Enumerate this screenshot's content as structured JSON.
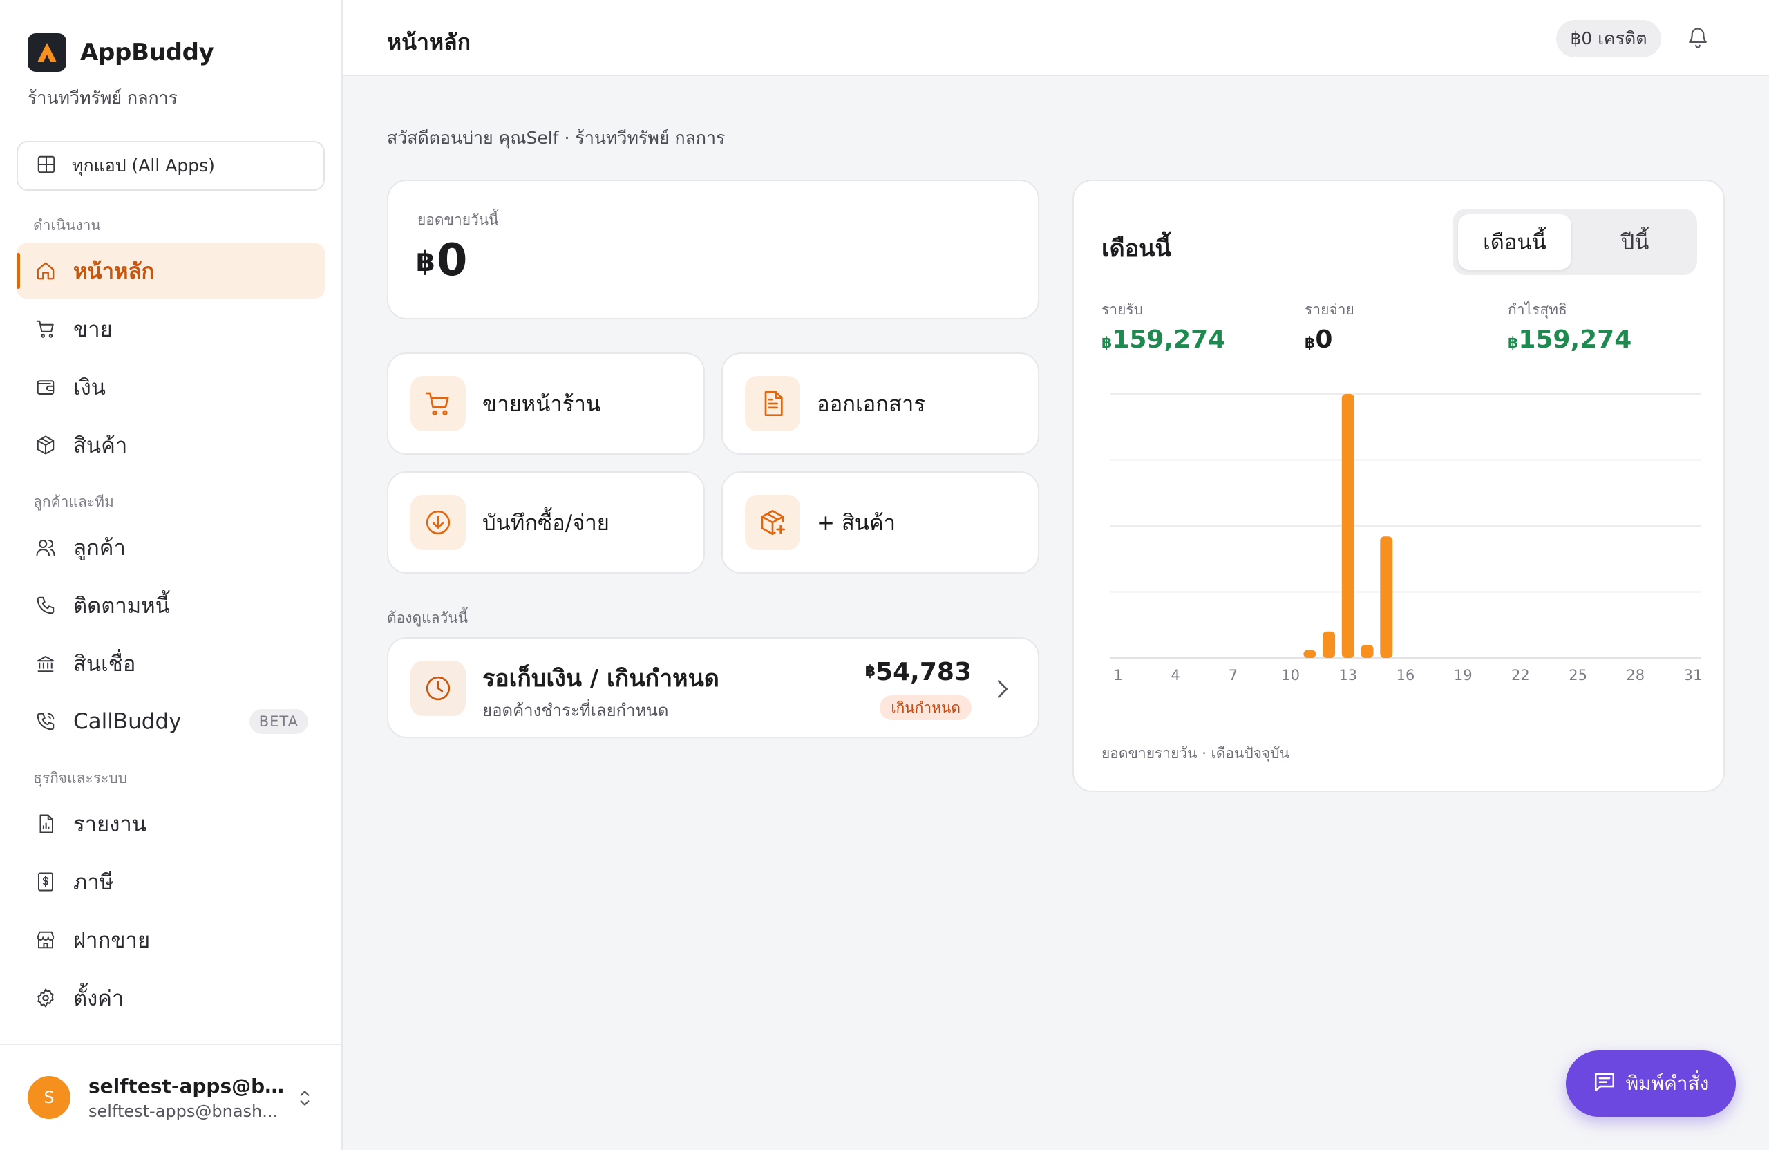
{
  "brand": {
    "name": "AppBuddy",
    "shop": "ร้านทวีทรัพย์ กลการ"
  },
  "all_apps": {
    "label": "ทุกแอป (All Apps)"
  },
  "sidebar": {
    "sections": [
      {
        "label": "ดำเนินงาน"
      },
      {
        "label": "ลูกค้าและทีม"
      },
      {
        "label": "ธุรกิจและระบบ"
      }
    ],
    "items": [
      {
        "label": "หน้าหลัก",
        "icon": "home-icon",
        "active": true
      },
      {
        "label": "ขาย",
        "icon": "cart-icon"
      },
      {
        "label": "เงิน",
        "icon": "wallet-icon"
      },
      {
        "label": "สินค้า",
        "icon": "box-icon"
      },
      {
        "label": "ลูกค้า",
        "icon": "users-icon"
      },
      {
        "label": "ติดตามหนี้",
        "icon": "phone-icon"
      },
      {
        "label": "สินเชื่อ",
        "icon": "bank-icon"
      },
      {
        "label": "CallBuddy",
        "icon": "phone-call-icon",
        "badge": "BETA"
      },
      {
        "label": "รายงาน",
        "icon": "report-icon"
      },
      {
        "label": "ภาษี",
        "icon": "tax-icon"
      },
      {
        "label": "ฝากขาย",
        "icon": "store-icon"
      },
      {
        "label": "ตั้งค่า",
        "icon": "gear-icon"
      }
    ]
  },
  "user": {
    "initial": "S",
    "name": "selftest-apps@bn...",
    "email": "selftest-apps@bnash..."
  },
  "header": {
    "title": "หน้าหลัก",
    "credit": "฿0 เครดิต"
  },
  "greeting": "สวัสดีตอนบ่าย คุณSelf · ร้านทวีทรัพย์ กลการ",
  "sales_today": {
    "label": "ยอดขายวันนี้",
    "currency": "฿",
    "value": "0"
  },
  "actions": [
    {
      "label": "ขายหน้าร้าน",
      "icon": "cart-icon"
    },
    {
      "label": "ออกเอกสาร",
      "icon": "document-icon"
    },
    {
      "label": "บันทึกซื้อ/จ่าย",
      "icon": "download-circle-icon"
    },
    {
      "label": "+ สินค้า",
      "icon": "box-plus-icon"
    }
  ],
  "todo": {
    "section_label": "ต้องดูแลวันนี้",
    "title": "รอเก็บเงิน / เกินกำหนด",
    "subtitle": "ยอดค้างชำระที่เลยกำหนด",
    "currency": "฿",
    "amount": "54,783",
    "tag": "เกินกำหนด"
  },
  "summary": {
    "title": "เดือนนี้",
    "toggle": [
      "เดือนนี้",
      "ปีนี้"
    ],
    "selected": "เดือนนี้",
    "metrics": [
      {
        "label": "รายรับ",
        "currency": "฿",
        "value": "159,274",
        "color": "#1f8a50"
      },
      {
        "label": "รายจ่าย",
        "currency": "฿",
        "value": "0",
        "color": "#1c1c1e"
      },
      {
        "label": "กำไรสุทธิ",
        "currency": "฿",
        "value": "159,274",
        "color": "#1f8a50"
      }
    ],
    "caption": "ยอดขายรายวัน · เดือนปัจจุบัน"
  },
  "chart_data": {
    "type": "bar",
    "x_tick_labels": [
      "1",
      "4",
      "7",
      "10",
      "13",
      "16",
      "19",
      "22",
      "25",
      "28",
      "31"
    ],
    "x": [
      11,
      12,
      13,
      14,
      15
    ],
    "values": [
      3,
      10,
      100,
      5,
      46
    ],
    "xlim": [
      1,
      31
    ],
    "ylim": [
      0,
      100
    ],
    "grid": true,
    "bar_color": "#f7901e"
  },
  "fab": {
    "label": "พิมพ์คำสั่ง"
  },
  "colors": {
    "accent": "#e0660f",
    "accent_bg": "#fdeee2",
    "fab": "#6c47e0",
    "positive": "#1f8a50"
  }
}
